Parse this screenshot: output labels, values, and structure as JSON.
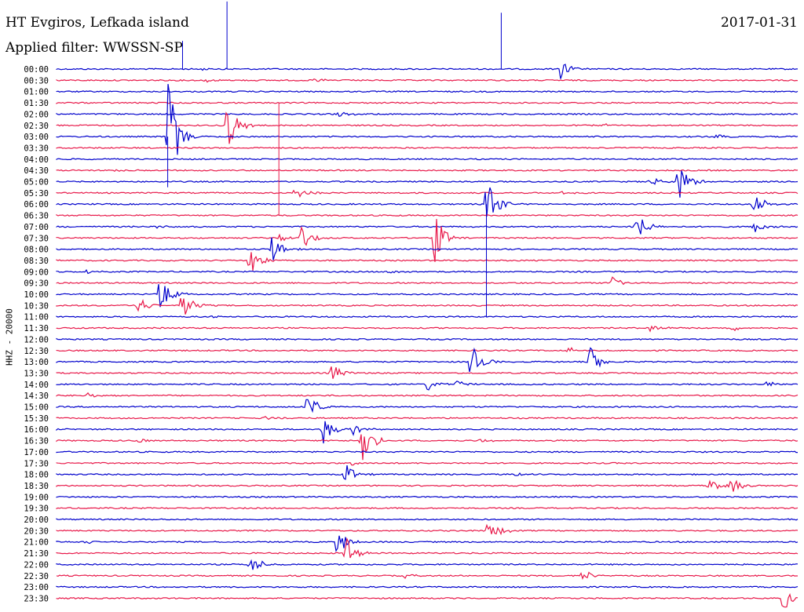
{
  "header": {
    "station": "HT Evgiros, Lefkada island",
    "filter": "Applied filter: WWSSN-SP",
    "date": "2017-01-31",
    "channel": "HHZ - 20000"
  },
  "colors": {
    "odd": "#0000cc",
    "even": "#e8194a"
  },
  "chart_data": {
    "type": "line",
    "title": "HT Evgiros, Lefkada island",
    "subtitle": "Applied filter: WWSSN-SP",
    "ylabel": "HHZ - 20000",
    "row_labels": [
      "00:00",
      "00:30",
      "01:00",
      "01:30",
      "02:00",
      "02:30",
      "03:00",
      "03:30",
      "04:00",
      "04:30",
      "05:00",
      "05:30",
      "06:00",
      "06:30",
      "07:00",
      "07:30",
      "08:00",
      "08:30",
      "09:00",
      "09:30",
      "10:00",
      "10:30",
      "11:00",
      "11:30",
      "12:00",
      "12:30",
      "13:00",
      "13:30",
      "14:00",
      "14:30",
      "15:00",
      "15:30",
      "16:00",
      "16:30",
      "17:00",
      "17:30",
      "18:00",
      "18:30",
      "19:00",
      "19:30",
      "20:00",
      "20:30",
      "21:00",
      "21:30",
      "22:00",
      "22:30",
      "23:00",
      "23:30"
    ],
    "events": [
      {
        "row": 0,
        "pos": 0.68,
        "amp": 0.9
      },
      {
        "row": 0,
        "pos": 0.2,
        "amp": 0.15
      },
      {
        "row": 1,
        "pos": 0.35,
        "amp": 0.25
      },
      {
        "row": 1,
        "pos": 0.2,
        "amp": 0.2
      },
      {
        "row": 4,
        "pos": 0.38,
        "amp": 0.4
      },
      {
        "row": 5,
        "pos": 0.23,
        "amp": 2.8
      },
      {
        "row": 5,
        "pos": 0.74,
        "amp": 0.2
      },
      {
        "row": 6,
        "pos": 0.15,
        "amp": 5.5
      },
      {
        "row": 6,
        "pos": 0.89,
        "amp": 0.3
      },
      {
        "row": 9,
        "pos": 0.08,
        "amp": 0.2
      },
      {
        "row": 10,
        "pos": 0.84,
        "amp": 1.8
      },
      {
        "row": 10,
        "pos": 0.8,
        "amp": 0.5
      },
      {
        "row": 11,
        "pos": 0.32,
        "amp": 1.3
      },
      {
        "row": 11,
        "pos": 0.68,
        "amp": 0.2
      },
      {
        "row": 12,
        "pos": 0.58,
        "amp": 3.0
      },
      {
        "row": 12,
        "pos": 0.94,
        "amp": 1.5
      },
      {
        "row": 14,
        "pos": 0.78,
        "amp": 2.0
      },
      {
        "row": 14,
        "pos": 0.94,
        "amp": 0.6
      },
      {
        "row": 14,
        "pos": 0.13,
        "amp": 0.2
      },
      {
        "row": 15,
        "pos": 0.33,
        "amp": 1.2
      },
      {
        "row": 15,
        "pos": 0.51,
        "amp": 2.5
      },
      {
        "row": 15,
        "pos": 0.3,
        "amp": 0.4
      },
      {
        "row": 16,
        "pos": 0.29,
        "amp": 1.6
      },
      {
        "row": 17,
        "pos": 0.26,
        "amp": 1.5
      },
      {
        "row": 18,
        "pos": 0.04,
        "amp": 0.2
      },
      {
        "row": 18,
        "pos": 0.45,
        "amp": 0.2
      },
      {
        "row": 19,
        "pos": 0.75,
        "amp": 0.7
      },
      {
        "row": 20,
        "pos": 0.14,
        "amp": 2.5
      },
      {
        "row": 21,
        "pos": 0.11,
        "amp": 0.9
      },
      {
        "row": 21,
        "pos": 0.17,
        "amp": 1.6
      },
      {
        "row": 22,
        "pos": 0.21,
        "amp": 0.2
      },
      {
        "row": 23,
        "pos": 0.8,
        "amp": 0.5
      },
      {
        "row": 23,
        "pos": 0.91,
        "amp": 0.3
      },
      {
        "row": 25,
        "pos": 0.69,
        "amp": 0.3
      },
      {
        "row": 26,
        "pos": 0.56,
        "amp": 1.8
      },
      {
        "row": 26,
        "pos": 0.72,
        "amp": 1.5
      },
      {
        "row": 27,
        "pos": 0.37,
        "amp": 1.0
      },
      {
        "row": 28,
        "pos": 0.5,
        "amp": 0.6
      },
      {
        "row": 28,
        "pos": 0.96,
        "amp": 0.4
      },
      {
        "row": 28,
        "pos": 0.54,
        "amp": 0.4
      },
      {
        "row": 29,
        "pos": 0.04,
        "amp": 0.3
      },
      {
        "row": 30,
        "pos": 0.34,
        "amp": 1.3
      },
      {
        "row": 31,
        "pos": 0.28,
        "amp": 0.2
      },
      {
        "row": 32,
        "pos": 0.36,
        "amp": 1.4
      },
      {
        "row": 32,
        "pos": 0.4,
        "amp": 0.5
      },
      {
        "row": 33,
        "pos": 0.41,
        "amp": 3.0
      },
      {
        "row": 33,
        "pos": 0.57,
        "amp": 0.3
      },
      {
        "row": 33,
        "pos": 0.11,
        "amp": 0.3
      },
      {
        "row": 35,
        "pos": 0.4,
        "amp": 0.3
      },
      {
        "row": 36,
        "pos": 0.39,
        "amp": 1.0
      },
      {
        "row": 36,
        "pos": 0.62,
        "amp": 0.3
      },
      {
        "row": 37,
        "pos": 0.88,
        "amp": 0.8
      },
      {
        "row": 37,
        "pos": 0.91,
        "amp": 0.8
      },
      {
        "row": 41,
        "pos": 0.58,
        "amp": 0.6
      },
      {
        "row": 41,
        "pos": 0.59,
        "amp": 0.6
      },
      {
        "row": 42,
        "pos": 0.38,
        "amp": 1.5
      },
      {
        "row": 42,
        "pos": 0.04,
        "amp": 0.2
      },
      {
        "row": 43,
        "pos": 0.39,
        "amp": 1.5
      },
      {
        "row": 44,
        "pos": 0.26,
        "amp": 1.3
      },
      {
        "row": 45,
        "pos": 0.71,
        "amp": 0.6
      },
      {
        "row": 45,
        "pos": 0.47,
        "amp": 0.2
      },
      {
        "row": 47,
        "pos": 0.98,
        "amp": 1.4
      }
    ],
    "spikes": [
      {
        "row": 0,
        "pos": 0.17,
        "up": 2.5,
        "down": 0
      },
      {
        "row": 0,
        "pos": 0.23,
        "up": 6,
        "down": 0
      },
      {
        "row": 0,
        "pos": 0.6,
        "up": 5,
        "down": 0
      },
      {
        "row": 3,
        "pos": 0.3,
        "up": 0,
        "down": 10
      },
      {
        "row": 6,
        "pos": 0.15,
        "up": 0,
        "down": 4.5
      },
      {
        "row": 12,
        "pos": 0.58,
        "up": 0,
        "down": 10
      }
    ]
  }
}
